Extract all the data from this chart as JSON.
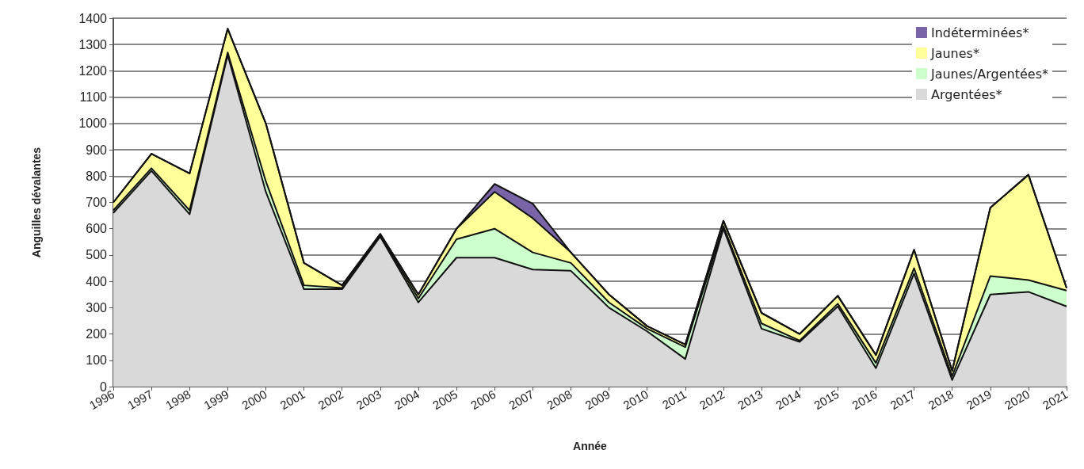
{
  "chart_data": {
    "type": "area",
    "stacked": true,
    "xlabel": "Année",
    "ylabel": "Anguilles dévalantes",
    "categories": [
      "1996",
      "1997",
      "1998",
      "1999",
      "2000",
      "2001",
      "2002",
      "2003",
      "2004",
      "2005",
      "2006",
      "2007",
      "2008",
      "2009",
      "2010",
      "2011",
      "2012",
      "2013",
      "2014",
      "2015",
      "2016",
      "2017",
      "2018",
      "2019",
      "2020",
      "2021"
    ],
    "series": [
      {
        "name": "Argentées*",
        "color": "#d9d9d9",
        "values": [
          660,
          820,
          655,
          1260,
          740,
          370,
          370,
          570,
          320,
          490,
          490,
          445,
          440,
          300,
          210,
          105,
          600,
          220,
          170,
          305,
          70,
          430,
          25,
          350,
          360,
          305
        ]
      },
      {
        "name": "Jaunes/Argentées*",
        "color": "#ccffcc",
        "values": [
          10,
          10,
          15,
          10,
          40,
          15,
          5,
          5,
          15,
          70,
          110,
          65,
          30,
          20,
          10,
          45,
          10,
          20,
          5,
          10,
          20,
          20,
          15,
          70,
          45,
          60
        ]
      },
      {
        "name": "Jaunes*",
        "color": "#ffff99",
        "values": [
          30,
          55,
          140,
          90,
          220,
          85,
          10,
          5,
          15,
          40,
          140,
          130,
          40,
          30,
          10,
          10,
          20,
          40,
          25,
          30,
          30,
          70,
          20,
          260,
          400,
          10
        ]
      },
      {
        "name": "Indéterminées*",
        "color": "#7a64a8",
        "values": [
          0,
          0,
          0,
          0,
          0,
          0,
          0,
          0,
          0,
          0,
          30,
          55,
          0,
          0,
          0,
          0,
          0,
          0,
          0,
          0,
          0,
          0,
          0,
          0,
          0,
          0
        ]
      }
    ],
    "ylim": [
      0,
      1400
    ],
    "yticks": [
      0,
      100,
      200,
      300,
      400,
      500,
      600,
      700,
      800,
      900,
      1000,
      1100,
      1200,
      1300,
      1400
    ],
    "grid": "y",
    "legend": "top right"
  }
}
